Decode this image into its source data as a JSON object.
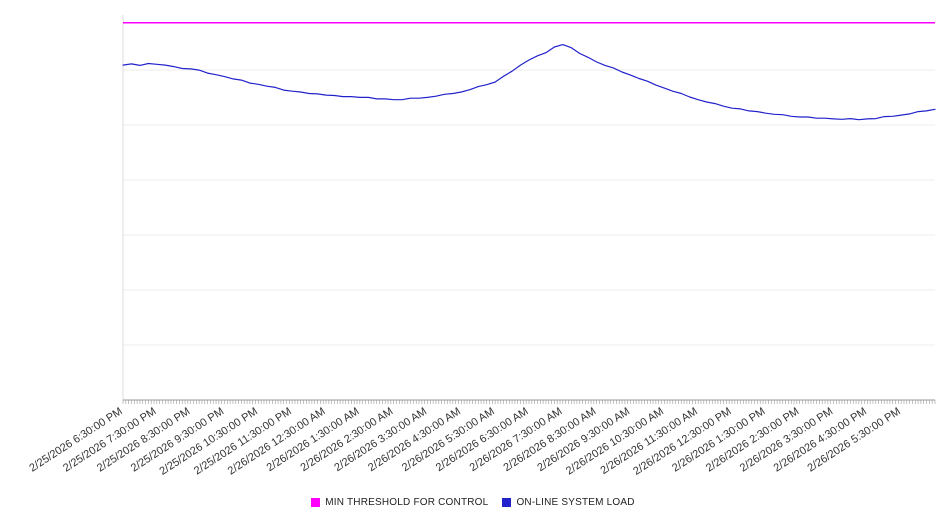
{
  "chart_data": {
    "type": "line",
    "title": "",
    "xlabel": "",
    "ylabel": "",
    "ylim": [
      0,
      100
    ],
    "grid": true,
    "legend_position": "bottom",
    "minutes_per_point": 15,
    "x_tick_labels": [
      "2/25/2026 6:30:00 PM",
      "2/25/2026 7:30:00 PM",
      "2/25/2026 8:30:00 PM",
      "2/25/2026 9:30:00 PM",
      "2/25/2026 10:30:00 PM",
      "2/25/2026 11:30:00 PM",
      "2/26/2026 12:30:00 AM",
      "2/26/2026 1:30:00 AM",
      "2/26/2026 2:30:00 AM",
      "2/26/2026 3:30:00 AM",
      "2/26/2026 4:30:00 AM",
      "2/26/2026 5:30:00 AM",
      "2/26/2026 6:30:00 AM",
      "2/26/2026 7:30:00 AM",
      "2/26/2026 8:30:00 AM",
      "2/26/2026 9:30:00 AM",
      "2/26/2026 10:30:00 AM",
      "2/26/2026 11:30:00 AM",
      "2/26/2026 12:30:00 PM",
      "2/26/2026 1:30:00 PM",
      "2/26/2026 2:30:00 PM",
      "2/26/2026 3:30:00 PM",
      "2/26/2026 4:30:00 PM",
      "2/26/2026 5:30:00 PM"
    ],
    "series": [
      {
        "name": "MIN THRESHOLD FOR CONTROL",
        "color": "#ff00ff",
        "constant_value": 98
      },
      {
        "name": "ON-LINE SYSTEM LOAD",
        "color": "#2222cc",
        "values": [
          87.0,
          87.3,
          86.9,
          87.4,
          87.2,
          87.0,
          86.6,
          86.1,
          86.0,
          85.7,
          84.9,
          84.5,
          84.0,
          83.4,
          83.1,
          82.3,
          82.0,
          81.5,
          81.2,
          80.5,
          80.2,
          80.0,
          79.6,
          79.5,
          79.2,
          79.1,
          78.8,
          78.8,
          78.6,
          78.6,
          78.2,
          78.2,
          78.0,
          78.0,
          78.4,
          78.4,
          78.6,
          78.9,
          79.4,
          79.6,
          80.0,
          80.6,
          81.4,
          81.9,
          82.6,
          84.1,
          85.4,
          87.0,
          88.3,
          89.4,
          90.2,
          91.7,
          92.3,
          91.5,
          90.0,
          89.0,
          87.8,
          86.9,
          86.2,
          85.2,
          84.4,
          83.5,
          82.8,
          81.8,
          81.0,
          80.2,
          79.6,
          78.7,
          78.0,
          77.4,
          77.0,
          76.3,
          75.8,
          75.6,
          75.1,
          74.9,
          74.5,
          74.2,
          74.1,
          73.7,
          73.5,
          73.5,
          73.2,
          73.2,
          73.0,
          72.9,
          73.1,
          72.8,
          73.0,
          73.1,
          73.6,
          73.7,
          74.0,
          74.3,
          74.9,
          75.1,
          75.5
        ]
      }
    ],
    "axis_color": "#999999",
    "grid_color": "#ececec",
    "label_color": "#333333"
  }
}
